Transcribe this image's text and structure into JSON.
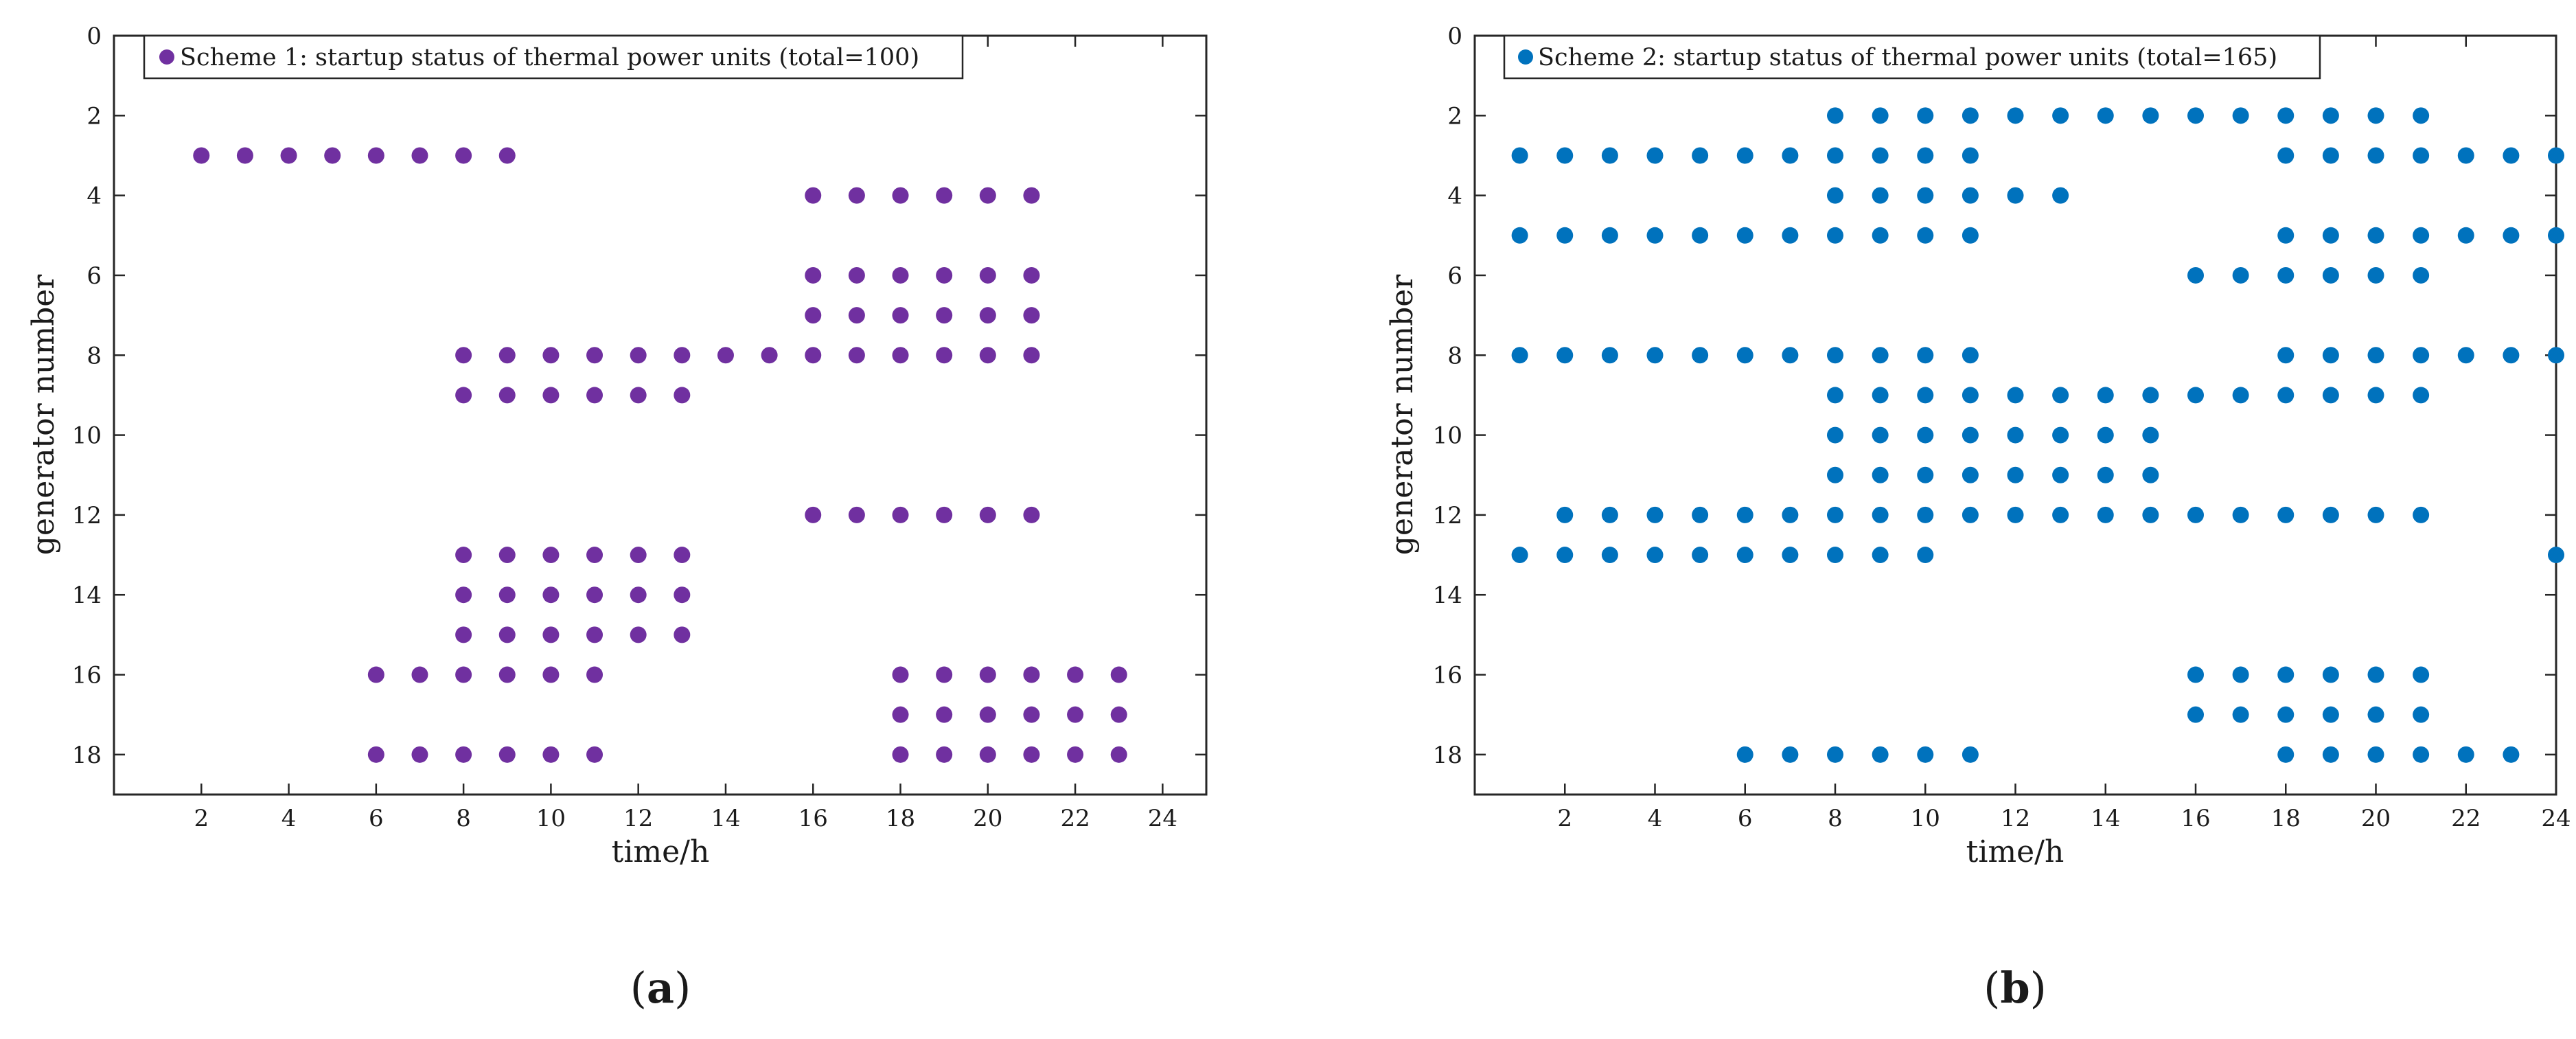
{
  "chart_data": [
    {
      "id": "a",
      "type": "scatter",
      "caption": "a",
      "legend": "Scheme 1: startup status of thermal power units (total=100)",
      "color": "#7030A0",
      "xlabel": "time/h",
      "ylabel": "generator number",
      "xlim": [
        0,
        25
      ],
      "ylim": [
        0,
        19
      ],
      "xticks": [
        2,
        4,
        6,
        8,
        10,
        12,
        14,
        16,
        18,
        20,
        22,
        24
      ],
      "yticks": [
        0,
        2,
        4,
        6,
        8,
        10,
        12,
        14,
        16,
        18
      ],
      "series": [
        {
          "generator": 3,
          "hours": [
            2,
            3,
            4,
            5,
            6,
            7,
            8,
            9
          ]
        },
        {
          "generator": 4,
          "hours": [
            16,
            17,
            18,
            19,
            20,
            21
          ]
        },
        {
          "generator": 6,
          "hours": [
            16,
            17,
            18,
            19,
            20,
            21
          ]
        },
        {
          "generator": 7,
          "hours": [
            16,
            17,
            18,
            19,
            20,
            21
          ]
        },
        {
          "generator": 8,
          "hours": [
            8,
            9,
            10,
            11,
            12,
            13,
            14,
            15,
            16,
            17,
            18,
            19,
            20,
            21
          ]
        },
        {
          "generator": 9,
          "hours": [
            8,
            9,
            10,
            11,
            12,
            13
          ]
        },
        {
          "generator": 12,
          "hours": [
            16,
            17,
            18,
            19,
            20,
            21
          ]
        },
        {
          "generator": 13,
          "hours": [
            8,
            9,
            10,
            11,
            12,
            13
          ]
        },
        {
          "generator": 14,
          "hours": [
            8,
            9,
            10,
            11,
            12,
            13
          ]
        },
        {
          "generator": 15,
          "hours": [
            8,
            9,
            10,
            11,
            12,
            13
          ]
        },
        {
          "generator": 16,
          "hours": [
            6,
            7,
            8,
            9,
            10,
            11,
            18,
            19,
            20,
            21,
            22,
            23
          ]
        },
        {
          "generator": 17,
          "hours": [
            18,
            19,
            20,
            21,
            22,
            23
          ]
        },
        {
          "generator": 18,
          "hours": [
            6,
            7,
            8,
            9,
            10,
            11,
            18,
            19,
            20,
            21,
            22,
            23
          ]
        }
      ]
    },
    {
      "id": "b",
      "type": "scatter",
      "caption": "b",
      "legend": "Scheme 2: startup status of thermal power units (total=165)",
      "color": "#0072BD",
      "xlabel": "time/h",
      "ylabel": "generator number",
      "xlim": [
        0,
        24
      ],
      "ylim": [
        0,
        19
      ],
      "xticks": [
        2,
        4,
        6,
        8,
        10,
        12,
        14,
        16,
        18,
        20,
        22,
        24
      ],
      "yticks": [
        0,
        2,
        4,
        6,
        8,
        10,
        12,
        14,
        16,
        18
      ],
      "series": [
        {
          "generator": 2,
          "hours": [
            8,
            9,
            10,
            11,
            12,
            13,
            14,
            15,
            16,
            17,
            18,
            19,
            20,
            21
          ]
        },
        {
          "generator": 3,
          "hours": [
            1,
            2,
            3,
            4,
            5,
            6,
            7,
            8,
            9,
            10,
            11,
            18,
            19,
            20,
            21,
            22,
            23,
            24
          ]
        },
        {
          "generator": 4,
          "hours": [
            8,
            9,
            10,
            11,
            12,
            13
          ]
        },
        {
          "generator": 5,
          "hours": [
            1,
            2,
            3,
            4,
            5,
            6,
            7,
            8,
            9,
            10,
            11,
            18,
            19,
            20,
            21,
            22,
            23,
            24
          ]
        },
        {
          "generator": 6,
          "hours": [
            16,
            17,
            18,
            19,
            20,
            21
          ]
        },
        {
          "generator": 8,
          "hours": [
            1,
            2,
            3,
            4,
            5,
            6,
            7,
            8,
            9,
            10,
            11,
            18,
            19,
            20,
            21,
            22,
            23,
            24
          ]
        },
        {
          "generator": 9,
          "hours": [
            8,
            9,
            10,
            11,
            12,
            13,
            14,
            15,
            16,
            17,
            18,
            19,
            20,
            21
          ]
        },
        {
          "generator": 10,
          "hours": [
            8,
            9,
            10,
            11,
            12,
            13,
            14,
            15
          ]
        },
        {
          "generator": 11,
          "hours": [
            8,
            9,
            10,
            11,
            12,
            13,
            14,
            15
          ]
        },
        {
          "generator": 12,
          "hours": [
            2,
            3,
            4,
            5,
            6,
            7,
            8,
            9,
            10,
            11,
            12,
            13,
            14,
            15,
            16,
            17,
            18,
            19,
            20,
            21
          ]
        },
        {
          "generator": 13,
          "hours": [
            1,
            2,
            3,
            4,
            5,
            6,
            7,
            8,
            9,
            10,
            24
          ]
        },
        {
          "generator": 16,
          "hours": [
            16,
            17,
            18,
            19,
            20,
            21
          ]
        },
        {
          "generator": 17,
          "hours": [
            16,
            17,
            18,
            19,
            20,
            21
          ]
        },
        {
          "generator": 18,
          "hours": [
            6,
            7,
            8,
            9,
            10,
            11,
            18,
            19,
            20,
            21,
            22,
            23
          ]
        }
      ]
    }
  ]
}
